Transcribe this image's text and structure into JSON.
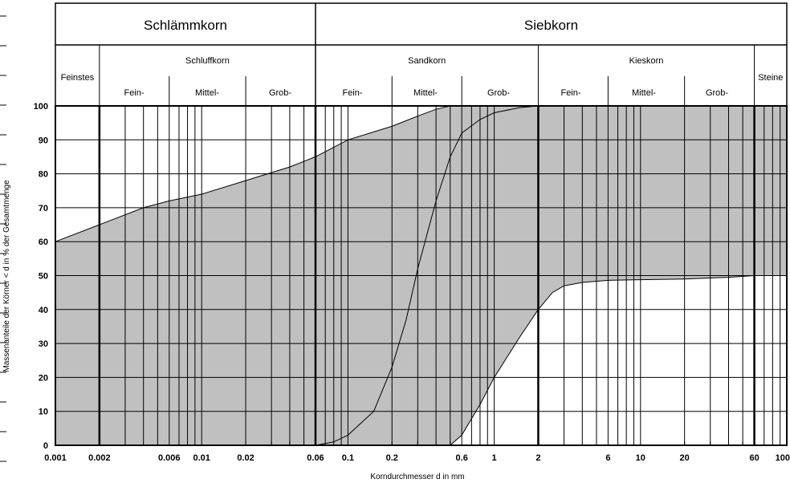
{
  "chart_data": {
    "type": "area",
    "title": "",
    "xlabel": "Korndurchmesser d in mm",
    "ylabel": "Massenanteile der Körner < d in % der Gesamtmenge",
    "xscale": "log",
    "xlim": [
      0.001,
      100
    ],
    "ylim": [
      0,
      100
    ],
    "grid": true,
    "x_tick_labels": [
      "0.001",
      "0.002",
      "0.006",
      "0.01",
      "0.02",
      "0.06",
      "0.1",
      "0.2",
      "0.6",
      "1",
      "2",
      "6",
      "10",
      "20",
      "60",
      "100"
    ],
    "x_tick_values": [
      0.001,
      0.002,
      0.006,
      0.01,
      0.02,
      0.06,
      0.1,
      0.2,
      0.6,
      1,
      2,
      6,
      10,
      20,
      60,
      100
    ],
    "y_tick_labels": [
      "0",
      "10",
      "20",
      "30",
      "40",
      "50",
      "60",
      "70",
      "80",
      "90",
      "100"
    ],
    "y_tick_values": [
      0,
      10,
      20,
      30,
      40,
      50,
      60,
      70,
      80,
      90,
      100
    ],
    "fill_color": "#c0c0c0",
    "band_upper": [
      {
        "x": 0.001,
        "y": 60
      },
      {
        "x": 0.002,
        "y": 65
      },
      {
        "x": 0.004,
        "y": 70
      },
      {
        "x": 0.006,
        "y": 72
      },
      {
        "x": 0.01,
        "y": 74
      },
      {
        "x": 0.02,
        "y": 78
      },
      {
        "x": 0.04,
        "y": 82
      },
      {
        "x": 0.06,
        "y": 85
      },
      {
        "x": 0.1,
        "y": 90
      },
      {
        "x": 0.2,
        "y": 94
      },
      {
        "x": 0.3,
        "y": 97
      },
      {
        "x": 0.4,
        "y": 99
      },
      {
        "x": 0.5,
        "y": 100
      },
      {
        "x": 100,
        "y": 100
      }
    ],
    "band_lower": [
      {
        "x": 0.001,
        "y": 0
      },
      {
        "x": 0.5,
        "y": 0
      },
      {
        "x": 0.6,
        "y": 3
      },
      {
        "x": 0.8,
        "y": 12
      },
      {
        "x": 1,
        "y": 20
      },
      {
        "x": 1.5,
        "y": 32
      },
      {
        "x": 2,
        "y": 40
      },
      {
        "x": 2.5,
        "y": 45
      },
      {
        "x": 3,
        "y": 47
      },
      {
        "x": 4,
        "y": 48
      },
      {
        "x": 6,
        "y": 48.6
      },
      {
        "x": 10,
        "y": 48.8
      },
      {
        "x": 20,
        "y": 49
      },
      {
        "x": 40,
        "y": 49.5
      },
      {
        "x": 60,
        "y": 50
      }
    ],
    "curve_s": [
      {
        "x": 0.06,
        "y": 0
      },
      {
        "x": 0.08,
        "y": 1
      },
      {
        "x": 0.1,
        "y": 3
      },
      {
        "x": 0.15,
        "y": 10
      },
      {
        "x": 0.2,
        "y": 23
      },
      {
        "x": 0.25,
        "y": 37
      },
      {
        "x": 0.3,
        "y": 52
      },
      {
        "x": 0.4,
        "y": 72
      },
      {
        "x": 0.5,
        "y": 85
      },
      {
        "x": 0.6,
        "y": 92
      },
      {
        "x": 0.8,
        "y": 96
      },
      {
        "x": 1,
        "y": 98
      },
      {
        "x": 1.5,
        "y": 99.5
      },
      {
        "x": 2,
        "y": 100
      }
    ],
    "header": {
      "schlaemmkorn": "Schlämmkorn",
      "siebkorn": "Siebkorn",
      "feinstes": "Feinstes",
      "schluffkorn": "Schluffkorn",
      "sandkorn": "Sandkorn",
      "kieskorn": "Kieskorn",
      "steine": "Steine",
      "fein": "Fein-",
      "mittel": "Mittel-",
      "grob": "Grob-"
    }
  }
}
